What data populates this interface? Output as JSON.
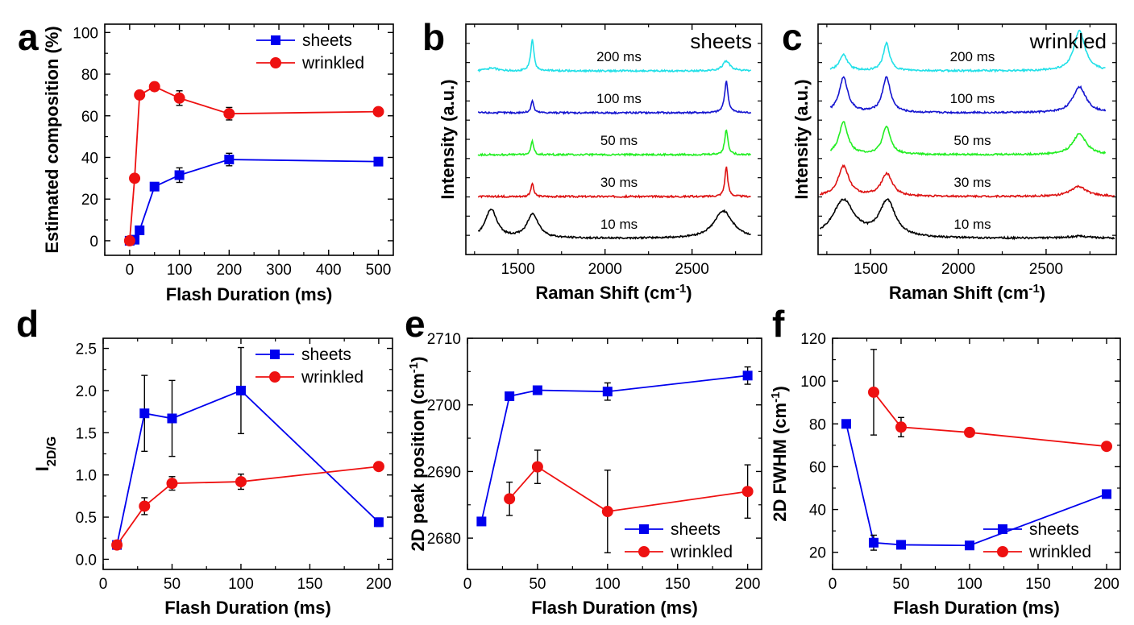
{
  "figure": {
    "panels": [
      "a",
      "b",
      "c",
      "d",
      "e",
      "f"
    ]
  },
  "colors": {
    "sheets": "#0000ee",
    "wrinkled": "#ee1111",
    "spec_200": "#22e0e8",
    "spec_100": "#1515d0",
    "spec_50": "#22ee22",
    "spec_30": "#dd1111",
    "spec_10": "#000000"
  },
  "chart_data": [
    {
      "id": "a",
      "type": "line",
      "panel_label": "a",
      "xlabel": "Flash Duration (ms)",
      "ylabel": "Estimated composition (%)",
      "xlim": [
        -50,
        530
      ],
      "ylim": [
        -7,
        104
      ],
      "xticks": [
        0,
        100,
        200,
        300,
        400,
        500
      ],
      "xtick_labels": [
        "0",
        "100",
        "200",
        "300",
        "400",
        "500"
      ],
      "yticks": [
        0,
        20,
        40,
        60,
        80,
        100
      ],
      "ytick_labels": [
        "0",
        "20",
        "40",
        "60",
        "80",
        "100"
      ],
      "legend": "top-right",
      "series": [
        {
          "name": "sheets",
          "marker": "square",
          "x": [
            0,
            10,
            20,
            50,
            100,
            200,
            500
          ],
          "y": [
            0,
            0.5,
            5,
            26,
            31.5,
            39,
            38
          ],
          "err": [
            0,
            0,
            0,
            1.5,
            3.5,
            3,
            0.5
          ]
        },
        {
          "name": "wrinkled",
          "marker": "circle",
          "x": [
            0,
            10,
            20,
            50,
            100,
            200,
            500
          ],
          "y": [
            0,
            30,
            70,
            74,
            68.5,
            61,
            62
          ],
          "err": [
            0,
            1,
            1,
            2,
            3.5,
            3,
            1.5
          ]
        }
      ]
    },
    {
      "id": "b",
      "type": "line",
      "panel_label": "b",
      "corner_label": "sheets",
      "xlabel": "Raman Shift (cm",
      "xlabel_sup": "-1",
      "xlabel_end": ")",
      "ylabel": "Intensity (a.u.)",
      "xlim": [
        1200,
        2900
      ],
      "xticks": [
        1500,
        2000,
        2500
      ],
      "xtick_labels": [
        "1500",
        "2000",
        "2500"
      ],
      "spectra": [
        {
          "label": "200 ms",
          "color_key": "spec_200",
          "xstart": 1270,
          "xend": 2840,
          "D": {
            "pos": 1350,
            "height": 0.06,
            "width": 35
          },
          "G": {
            "pos": 1582,
            "height": 0.62,
            "width": 11
          },
          "TwoD": {
            "pos": 2697,
            "height": 0.2,
            "width": 25
          }
        },
        {
          "label": "100 ms",
          "color_key": "spec_100",
          "xstart": 1270,
          "xend": 2840,
          "D": {
            "pos": 1350,
            "height": 0.0,
            "width": 30
          },
          "G": {
            "pos": 1582,
            "height": 0.25,
            "width": 9
          },
          "TwoD": {
            "pos": 2697,
            "height": 0.63,
            "width": 12
          }
        },
        {
          "label": "50 ms",
          "color_key": "spec_50",
          "xstart": 1270,
          "xend": 2840,
          "D": {
            "pos": 1350,
            "height": 0.0,
            "width": 30
          },
          "G": {
            "pos": 1582,
            "height": 0.27,
            "width": 9
          },
          "TwoD": {
            "pos": 2697,
            "height": 0.5,
            "width": 11
          }
        },
        {
          "label": "30 ms",
          "color_key": "spec_30",
          "xstart": 1270,
          "xend": 2840,
          "D": {
            "pos": 1350,
            "height": 0.0,
            "width": 30
          },
          "G": {
            "pos": 1582,
            "height": 0.27,
            "width": 9
          },
          "TwoD": {
            "pos": 2697,
            "height": 0.6,
            "width": 10
          }
        },
        {
          "label": "10 ms",
          "color_key": "spec_10",
          "xstart": 1270,
          "xend": 2840,
          "D": {
            "pos": 1345,
            "height": 0.58,
            "width": 40
          },
          "G": {
            "pos": 1585,
            "height": 0.48,
            "width": 40
          },
          "TwoD": {
            "pos": 2680,
            "height": 0.55,
            "width": 65
          }
        }
      ]
    },
    {
      "id": "c",
      "type": "line",
      "panel_label": "c",
      "corner_label": "wrinkled",
      "xlabel": "Raman Shift (cm",
      "xlabel_sup": "-1",
      "xlabel_end": ")",
      "ylabel": "Intensity (a.u.)",
      "xlim": [
        1200,
        2900
      ],
      "xticks": [
        1500,
        2000,
        2500
      ],
      "xtick_labels": [
        "1500",
        "2000",
        "2500"
      ],
      "spectra": [
        {
          "label": "200 ms",
          "color_key": "spec_200",
          "xstart": 1270,
          "xend": 2840,
          "D": {
            "pos": 1345,
            "height": 0.32,
            "width": 28
          },
          "G": {
            "pos": 1590,
            "height": 0.55,
            "width": 22
          },
          "TwoD": {
            "pos": 2690,
            "height": 0.8,
            "width": 38
          }
        },
        {
          "label": "100 ms",
          "color_key": "spec_100",
          "xstart": 1270,
          "xend": 2840,
          "D": {
            "pos": 1345,
            "height": 0.7,
            "width": 30
          },
          "G": {
            "pos": 1590,
            "height": 0.7,
            "width": 28
          },
          "TwoD": {
            "pos": 2690,
            "height": 0.52,
            "width": 45
          }
        },
        {
          "label": "50 ms",
          "color_key": "spec_50",
          "xstart": 1270,
          "xend": 2840,
          "D": {
            "pos": 1345,
            "height": 0.65,
            "width": 30
          },
          "G": {
            "pos": 1590,
            "height": 0.55,
            "width": 28
          },
          "TwoD": {
            "pos": 2690,
            "height": 0.42,
            "width": 45
          }
        },
        {
          "label": "30 ms",
          "color_key": "spec_30",
          "xstart": 1210,
          "xend": 2890,
          "D": {
            "pos": 1345,
            "height": 0.6,
            "width": 38
          },
          "G": {
            "pos": 1592,
            "height": 0.45,
            "width": 38
          },
          "TwoD": {
            "pos": 2685,
            "height": 0.2,
            "width": 55
          }
        },
        {
          "label": "10 ms",
          "color_key": "spec_10",
          "xstart": 1210,
          "xend": 2890,
          "D": {
            "pos": 1345,
            "height": 0.75,
            "width": 75
          },
          "G": {
            "pos": 1595,
            "height": 0.72,
            "width": 55
          },
          "TwoD": {
            "pos": 2690,
            "height": 0.04,
            "width": 80
          }
        }
      ]
    },
    {
      "id": "d",
      "type": "line",
      "panel_label": "d",
      "xlabel": "Flash Duration (ms)",
      "ylabel": "I",
      "ylabel_sub": "2D/G",
      "xlim": [
        0,
        210
      ],
      "ylim": [
        -0.12,
        2.62
      ],
      "xticks": [
        0,
        50,
        100,
        150,
        200
      ],
      "xtick_labels": [
        "0",
        "50",
        "100",
        "150",
        "200"
      ],
      "yticks": [
        0.0,
        0.5,
        1.0,
        1.5,
        2.0,
        2.5
      ],
      "ytick_labels": [
        "0.0",
        "0.5",
        "1.0",
        "1.5",
        "2.0",
        "2.5"
      ],
      "legend": "top-right",
      "series": [
        {
          "name": "sheets",
          "marker": "square",
          "x": [
            10,
            30,
            50,
            100,
            200
          ],
          "y": [
            0.17,
            1.73,
            1.67,
            2.0,
            0.44
          ],
          "err": [
            0.04,
            0.45,
            0.45,
            0.51,
            0.05
          ]
        },
        {
          "name": "wrinkled",
          "marker": "circle",
          "x": [
            10,
            30,
            50,
            100,
            200
          ],
          "y": [
            0.17,
            0.63,
            0.9,
            0.92,
            1.1
          ],
          "err": [
            0.04,
            0.1,
            0.08,
            0.09,
            0.02
          ]
        }
      ]
    },
    {
      "id": "e",
      "type": "line",
      "panel_label": "e",
      "xlabel": "Flash Duration (ms)",
      "ylabel": "2D peak position (cm",
      "ylabel_sup": "-1",
      "ylabel_end": ")",
      "xlim": [
        0,
        210
      ],
      "ylim": [
        2675.3,
        2710
      ],
      "xticks": [
        0,
        50,
        100,
        150,
        200
      ],
      "xtick_labels": [
        "0",
        "50",
        "100",
        "150",
        "200"
      ],
      "yticks": [
        2680,
        2690,
        2700,
        2710
      ],
      "ytick_labels": [
        "2680",
        "2690",
        "2700",
        "2710"
      ],
      "legend": "bottom-right",
      "series": [
        {
          "name": "sheets",
          "marker": "square",
          "x": [
            10,
            30,
            50,
            100,
            200
          ],
          "y": [
            2682.5,
            2701.3,
            2702.2,
            2702.0,
            2704.4
          ],
          "err": [
            0,
            0.3,
            0.3,
            1.3,
            1.3
          ]
        },
        {
          "name": "wrinkled",
          "marker": "circle",
          "x": [
            30,
            50,
            100,
            200
          ],
          "y": [
            2685.9,
            2690.7,
            2684.0,
            2687.0
          ],
          "err": [
            2.5,
            2.5,
            6.2,
            4.0
          ]
        }
      ]
    },
    {
      "id": "f",
      "type": "line",
      "panel_label": "f",
      "xlabel": "Flash Duration (ms)",
      "ylabel": "2D FWHM (cm",
      "ylabel_sup": "-1",
      "ylabel_end": ")",
      "xlim": [
        0,
        210
      ],
      "ylim": [
        12,
        120
      ],
      "xticks": [
        0,
        50,
        100,
        150,
        200
      ],
      "xtick_labels": [
        "0",
        "50",
        "100",
        "150",
        "200"
      ],
      "yticks": [
        20,
        40,
        60,
        80,
        100,
        120
      ],
      "ytick_labels": [
        "20",
        "40",
        "60",
        "80",
        "100",
        "120"
      ],
      "legend": "bottom-right",
      "series": [
        {
          "name": "sheets",
          "marker": "square",
          "x": [
            10,
            30,
            50,
            100,
            200
          ],
          "y": [
            80,
            24.5,
            23.5,
            23.2,
            47.2
          ],
          "err": [
            0,
            3.5,
            1,
            1,
            1
          ]
        },
        {
          "name": "wrinkled",
          "marker": "circle",
          "x": [
            30,
            50,
            100,
            200
          ],
          "y": [
            94.8,
            78.5,
            76,
            69.5
          ],
          "err": [
            20,
            4.5,
            1.5,
            1
          ]
        }
      ]
    }
  ]
}
